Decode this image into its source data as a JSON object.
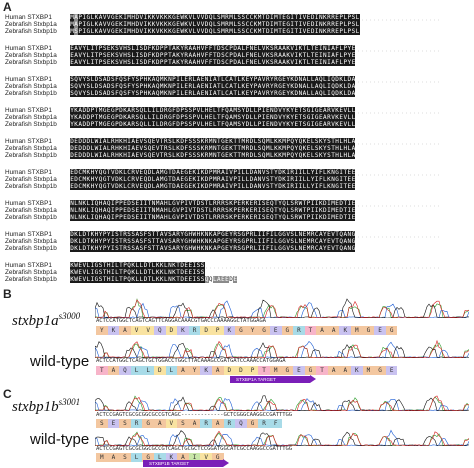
{
  "panels": {
    "a": "A",
    "b": "B",
    "c": "C"
  },
  "alignment": {
    "names": [
      "Human STXBP1",
      "Zebrafish Stxbp1a",
      "Zebrafish Stxbp1b"
    ],
    "blocks": [
      {
        "rows": [
          "MAPIGLKAVVGEKIMHDVIKKVKKKGEWKVLVVDQLSMRMLSSCCKMTDIMTEGITIVEDINKRREPLPSL",
          "MAPIGLKAVVGEKIMHDVIKKVKKKGEWKVLVVDQLSMRMLSSCCKMTDIMTEGITIVEDINKRREPLPSL",
          "MSPIGLKAVVGEKIMHDVIKKVKKKGEWKVLVVDQLSMRMLSSCCKMTDIMTEGITIVEDINKRREPLPSL"
        ]
      },
      {
        "rows": [
          "EAVYLITPSEKSVHSLISDFKDPPTAKYRAAHVFFTDSCPDALFNELVKSRAAKVIKTLTEINIAFLPYE",
          "EAVYLITPSEKSVHSLISDFKDPPTAKYRAAHVFFTDSCPDALFNELVKSRAAKVIKTLTEINIAFLPYE",
          "EAVYLITPSEKSVHSLISDFKDPPTAKYRAAHVFFTDSCPDALFNELVKSRAAKVIKTLTEINIAFLPYE"
        ]
      },
      {
        "rows": [
          "SQVYSLDSADSFQSFYSPHKAQMKNPILERLAENIATLCATLKEYPAVRYRGEYKDNALLAQLIQDKLDA",
          "SQVYSLDSADSFQSFYSPHKAQMKNPILERLAENIATLCATLKEYPAVRYRGEYKDNALLAQLIQDKLDA",
          "SQVYSLDSADSFQSFYSPHKAQMKNPILERLAENIATLCATLKEYPAVRYRGEYKDNALLAQLIQDKLDA"
        ]
      },
      {
        "rows": [
          "YKADDPTMGEGPDKARSQLLILDRGFDPSSPVLHELTFQAMSYDLLPIENDVYKYETSGIGEARVKEVLL",
          "YKADDPTMGEGPDKARSQLLILDRGFDPSSPVLHELTFQAMSYDLLPIENDVYKYETSGIGEARVKEVLL",
          "YKADDPTMGEGPDKARSQLLILDRGFDPSSPVLHELTFQAMSYDLLPIENDVYKYETSGIGEARVKEVLL"
        ]
      },
      {
        "rows": [
          "DEDDDLWIALRHKHIAEVSQEVTRSLKDFSSSKRMNTGEKTTMRDLSQMLKKMPQYQKELSKYSTHLHLA",
          "DEDDDLWIALRHKHIAEVSQEVTRSLKDFSSSKRMNTGEKTTMRDLSQMLKKMPQYQKELSKYSTHLHLA",
          "DEDDDLWIALRHKHIAEVSQEVTRSLKDFSSSKRMNTGEKTTMRDLSQMLKKMPQYQKELSKYSTHLHLA"
        ]
      },
      {
        "rows": [
          "EDCMKHYQGTVDKLCRVEQDLAMGTDAEGEKIKDPMRAIVPILLDANVSTYDKIRIILLYIFLKNGITEE",
          "EDCMKHYQGTVDKLCRVEQDLAMGTDAEGEKIKDPMRAIVPILLDANVSTYDKIRIILLYIFLKNGITEE",
          "EDCMKHYQGTVDKLCRVEQDLAMGTDAEGEKIKDPMRAIVPILLDANVSTYDKIRIILLYIFLKNGITEE"
        ]
      },
      {
        "rows": [
          "NLNKLIQHAQIPPEDSEIITNMAHLGVPIVTDSTLRRRSKPERKERISEQTYQLSRWTPIIKDIMEDTIE",
          "NLNKLIQHAQIPPEDSEIITNMAHLGVPIVTDSTLRRRSKPERKERISEQTYQLSRWTPIIKDIMEDTIE",
          "NLNKLIQHAQIPPEDSEIITNMAHLGVPIVTDSTLRRRSKPERKERISEQTYQLSRWTPIIKDIMEDTIE"
        ]
      },
      {
        "rows": [
          "DKLDTKHYPYISTRSSASFSTTAVSARYGHWHKNKAPGEYRSGPRLIIFILGGVSLNEMRCAYEVTQANG",
          "DKLDTKHYPYISTRSSASFSTTAVSARYGHWHKNKAPGEYRSGPRLIIFILGGVSLNEMRCAYEVTQANG",
          "DKLDTKHYPYISTRSSASFSTTAVSARYGHWHKNKAPGEYRSGPRLIIFILGGVSLNEMRCAYEVTQANG"
        ]
      },
      {
        "rows": [
          "KWEVLIGSTHILTPQKLLDTLKKLNKTDEEISS",
          "KWEVLIGSTHILTPQKLLDTLKKLNKTDEEISS",
          "KWEVLIGSTHILTPQKLLDTLKKLNKTDEEISSQQLAEEDE"
        ]
      }
    ]
  },
  "panel_b": {
    "mutant_label": "stxbp1a",
    "mutant_sup": "s3000",
    "wt_label": "wild-type",
    "mut_nt": "ACTCCATGGCTCAGTCAGTTCAGGACAAACGTGACCCAAAAGGCTATGGAGA",
    "mut_aa": [
      "Y",
      "K",
      "A",
      "V",
      "V",
      "Q",
      "D",
      "K",
      "R",
      "D",
      "P",
      "K",
      "G",
      "Y",
      "G",
      "E",
      "G",
      "R",
      "T",
      "A",
      "A",
      "K",
      "M",
      "G",
      "E",
      "G"
    ],
    "wt_nt": "ACTCCATGGCTCAGCTGCTGGACCTGGCTTACAAAGCCGATGATCCAAACCATGGAGA",
    "wt_aa": [
      "T",
      "A",
      "Q",
      "L",
      "L",
      "D",
      "L",
      "A",
      "Y",
      "K",
      "A",
      "D",
      "D",
      "P",
      "T",
      "M",
      "G",
      "E",
      "G",
      "T",
      "A",
      "A",
      "K",
      "M",
      "G",
      "E"
    ],
    "target": "STXBP1A TARGET"
  },
  "panel_c": {
    "mutant_label": "stxbp1b",
    "mutant_sup": "s3001",
    "wt_label": "wild-type",
    "mut_nt": "ACTCCGAGTCGCGCGGCGCCGTCAGC-------------GCTCGGGCAAGGCCGATTTGG",
    "mut_aa": [
      "S",
      "E",
      "S",
      "R",
      "G",
      "A",
      "V",
      "S",
      "A",
      "R",
      "A",
      "R",
      "Q",
      "G",
      "R",
      "F"
    ],
    "wt_nt": "ACTCCGAGTCGCGCGGCGCCGTCAGCTGCGCTCCGGATGGCATCGCCAAGGCCGATTTGG",
    "wt_aa": [
      "M",
      "A",
      "S",
      "L",
      "G",
      "L",
      "K",
      "A",
      "I",
      "V",
      "G"
    ],
    "target": "STXBP1B TARGET"
  },
  "colors": {
    "identical": "#1a1a1a",
    "similar": "#8a8a8a",
    "target": "#7a1fb8"
  }
}
